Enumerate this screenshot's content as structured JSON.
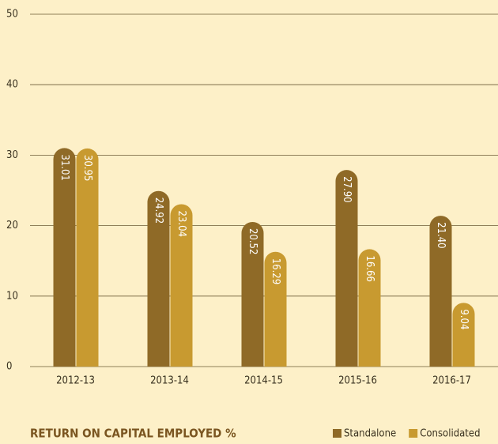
{
  "chart_data": {
    "type": "bar",
    "title": "RETURN ON CAPITAL EMPLOYED %",
    "categories": [
      "2012-13",
      "2013-14",
      "2014-15",
      "2015-16",
      "2016-17"
    ],
    "series": [
      {
        "name": "Standalone",
        "color": "#8f6a27",
        "values": [
          31.01,
          24.92,
          20.52,
          27.9,
          21.4
        ],
        "value_labels": [
          "31.01",
          "24.92",
          "20.52",
          "27.90",
          "21.40"
        ]
      },
      {
        "name": "Consolidated",
        "color": "#c89a30",
        "values": [
          30.95,
          23.04,
          16.29,
          16.66,
          9.04
        ],
        "value_labels": [
          "30.95",
          "23.04",
          "16.29",
          "16.66",
          "9.04"
        ]
      }
    ],
    "ylim": [
      0,
      50
    ],
    "yticks": [
      0,
      10,
      20,
      30,
      40,
      50
    ],
    "grid": true,
    "legend": "bottom-right"
  }
}
